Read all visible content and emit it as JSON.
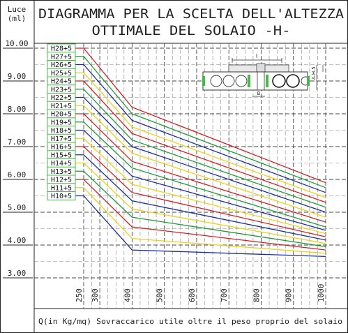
{
  "chart_data": {
    "type": "line",
    "title": "DIAGRAMMA PER LA SCELTA DELL'ALTEZZA OTTIMALE DEL SOLAIO -H-",
    "title_line1": "DIAGRAMMA PER LA SCELTA DELL'ALTEZZA",
    "title_line2": "OTTIMALE DEL SOLAIO -H-",
    "ylabel": "Luce",
    "yunit": "(ml)",
    "xlabel": "Q(in Kg/mq) Sovraccarico utile oltre il peso proprio del solaio",
    "ylim": [
      3.0,
      10.0
    ],
    "xlim": [
      250,
      1000
    ],
    "y_ticks": [
      "3.00",
      "4.00",
      "5.00",
      "6.00",
      "7.00",
      "8.00",
      "9.00",
      "10.00"
    ],
    "x_ticks": [
      "250",
      "300",
      "400",
      "500",
      "600",
      "700",
      "800",
      "900",
      "1000"
    ],
    "grid": true,
    "series": [
      {
        "name": "H28+5",
        "color": "#d22020",
        "points": [
          [
            250,
            10.0
          ],
          [
            400,
            8.2
          ],
          [
            1000,
            5.9
          ]
        ]
      },
      {
        "name": "H27+5",
        "color": "#1f9a3a",
        "points": [
          [
            250,
            9.75
          ],
          [
            400,
            8.0
          ],
          [
            1000,
            5.75
          ]
        ]
      },
      {
        "name": "H26+5",
        "color": "#1a2f9a",
        "points": [
          [
            250,
            9.5
          ],
          [
            400,
            7.8
          ],
          [
            1000,
            5.6
          ]
        ]
      },
      {
        "name": "H25+5",
        "color": "#e8d21a",
        "points": [
          [
            250,
            9.25
          ],
          [
            400,
            7.6
          ],
          [
            1000,
            5.45
          ]
        ]
      },
      {
        "name": "H24+5",
        "color": "#d22020",
        "points": [
          [
            250,
            9.0
          ],
          [
            400,
            7.4
          ],
          [
            1000,
            5.3
          ]
        ]
      },
      {
        "name": "H23+5",
        "color": "#1f9a3a",
        "points": [
          [
            250,
            8.75
          ],
          [
            400,
            7.2
          ],
          [
            1000,
            5.15
          ]
        ]
      },
      {
        "name": "H22+5",
        "color": "#1a2f9a",
        "points": [
          [
            250,
            8.5
          ],
          [
            400,
            7.0
          ],
          [
            1000,
            5.0
          ]
        ]
      },
      {
        "name": "H21+5",
        "color": "#e8d21a",
        "points": [
          [
            250,
            8.25
          ],
          [
            400,
            6.8
          ],
          [
            1000,
            4.85
          ]
        ]
      },
      {
        "name": "H20+5",
        "color": "#d22020",
        "points": [
          [
            250,
            8.0
          ],
          [
            400,
            6.55
          ],
          [
            1000,
            4.7
          ]
        ]
      },
      {
        "name": "H19+5",
        "color": "#1f9a3a",
        "points": [
          [
            250,
            7.75
          ],
          [
            400,
            6.35
          ],
          [
            1000,
            4.55
          ]
        ]
      },
      {
        "name": "H18+5",
        "color": "#1a2f9a",
        "points": [
          [
            250,
            7.5
          ],
          [
            400,
            6.1
          ],
          [
            1000,
            4.45
          ]
        ]
      },
      {
        "name": "H17+5",
        "color": "#e8d21a",
        "points": [
          [
            250,
            7.25
          ],
          [
            400,
            5.85
          ],
          [
            1000,
            4.35
          ]
        ]
      },
      {
        "name": "H16+5",
        "color": "#d22020",
        "points": [
          [
            250,
            7.0
          ],
          [
            400,
            5.6
          ],
          [
            1000,
            4.25
          ]
        ]
      },
      {
        "name": "H15+5",
        "color": "#1a2f9a",
        "points": [
          [
            250,
            6.75
          ],
          [
            400,
            5.35
          ],
          [
            1000,
            4.15
          ]
        ]
      },
      {
        "name": "H14+5",
        "color": "#e8d21a",
        "points": [
          [
            250,
            6.5
          ],
          [
            400,
            5.1
          ],
          [
            1000,
            4.05
          ]
        ]
      },
      {
        "name": "H13+5",
        "color": "#1f9a3a",
        "points": [
          [
            250,
            6.25
          ],
          [
            400,
            4.85
          ],
          [
            1000,
            3.95
          ]
        ]
      },
      {
        "name": "H12+5",
        "color": "#d22020",
        "points": [
          [
            250,
            6.0
          ],
          [
            400,
            4.55
          ],
          [
            1000,
            3.85
          ]
        ]
      },
      {
        "name": "H11+5",
        "color": "#e8d21a",
        "points": [
          [
            250,
            5.75
          ],
          [
            400,
            4.2
          ],
          [
            1000,
            3.75
          ]
        ]
      },
      {
        "name": "H10+5",
        "color": "#1a2f9a",
        "points": [
          [
            250,
            5.5
          ],
          [
            400,
            3.85
          ],
          [
            1000,
            3.65
          ]
        ]
      }
    ]
  }
}
